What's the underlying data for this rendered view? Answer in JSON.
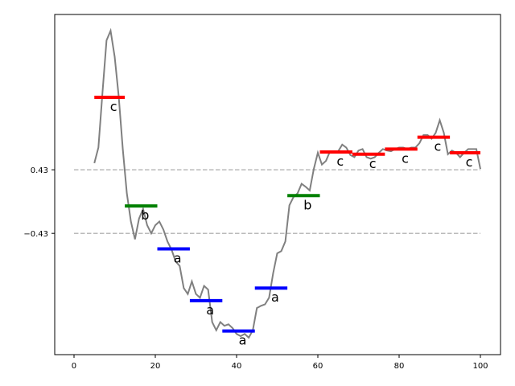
{
  "chart_data": {
    "type": "sax",
    "xlim": [
      -4.75,
      104.95
    ],
    "ylim": [
      -2.07,
      2.53
    ],
    "xticks": [
      0,
      20,
      40,
      60,
      80,
      100
    ],
    "yticks": [
      {
        "value": -0.43,
        "label": "−0.43"
      },
      0.43
    ],
    "grid": true,
    "x": [
      5,
      6,
      7,
      8,
      9,
      10,
      11,
      12,
      13,
      14,
      15,
      16,
      17,
      18,
      19,
      20,
      21,
      22,
      23,
      24,
      25,
      26,
      27,
      28,
      29,
      30,
      31,
      32,
      33,
      34,
      35,
      36,
      37,
      38,
      39,
      40,
      41,
      42,
      43,
      44,
      45,
      46,
      47,
      48,
      49,
      50,
      51,
      52,
      53,
      54,
      55,
      56,
      57,
      58,
      59,
      60,
      61,
      62,
      63,
      64,
      65,
      66,
      67,
      68,
      69,
      70,
      71,
      72,
      73,
      74,
      75,
      76,
      77,
      78,
      79,
      80,
      81,
      82,
      83,
      84,
      85,
      86,
      87,
      88,
      89,
      90,
      91,
      92,
      93,
      94,
      95,
      96,
      97,
      98,
      99,
      100
    ],
    "values": [
      0.52,
      0.73,
      1.47,
      2.18,
      2.31,
      1.96,
      1.42,
      0.71,
      0.11,
      -0.27,
      -0.51,
      -0.23,
      -0.1,
      -0.32,
      -0.43,
      -0.32,
      -0.27,
      -0.38,
      -0.54,
      -0.65,
      -0.81,
      -0.87,
      -1.17,
      -1.25,
      -1.08,
      -1.25,
      -1.3,
      -1.14,
      -1.19,
      -1.63,
      -1.74,
      -1.63,
      -1.68,
      -1.66,
      -1.71,
      -1.79,
      -1.82,
      -1.79,
      -1.84,
      -1.74,
      -1.44,
      -1.41,
      -1.39,
      -1.3,
      -0.97,
      -0.7,
      -0.67,
      -0.54,
      -0.05,
      0.06,
      0.11,
      0.24,
      0.2,
      0.15,
      0.44,
      0.66,
      0.5,
      0.55,
      0.68,
      0.66,
      0.68,
      0.77,
      0.73,
      0.63,
      0.6,
      0.69,
      0.71,
      0.6,
      0.58,
      0.6,
      0.66,
      0.71,
      0.69,
      0.68,
      0.71,
      0.73,
      0.73,
      0.71,
      0.73,
      0.73,
      0.79,
      0.9,
      0.9,
      0.85,
      0.93,
      1.1,
      0.93,
      0.64,
      0.69,
      0.66,
      0.6,
      0.66,
      0.71,
      0.71,
      0.71,
      0.44
    ],
    "color": "#808080",
    "segments": {
      "x_start": [
        5,
        12.5,
        20.5,
        28.5,
        36.5,
        44.5,
        52.5,
        60.5,
        68.5,
        76.5,
        84.5,
        92.5
      ],
      "x_end": [
        12.5,
        20.5,
        28.5,
        36.5,
        44.5,
        52.5,
        60.5,
        68.5,
        76.5,
        84.5,
        92.5,
        100
      ],
      "values": [
        1.41,
        -0.06,
        -0.64,
        -1.34,
        -1.75,
        -1.17,
        0.08,
        0.67,
        0.64,
        0.71,
        0.87,
        0.66
      ],
      "symbols": [
        "c",
        "b",
        "a",
        "a",
        "a",
        "a",
        "b",
        "c",
        "c",
        "c",
        "c",
        "c"
      ],
      "colors": [
        "red",
        "green",
        "blue",
        "blue",
        "blue",
        "blue",
        "green",
        "red",
        "red",
        "red",
        "red",
        "red"
      ]
    }
  }
}
